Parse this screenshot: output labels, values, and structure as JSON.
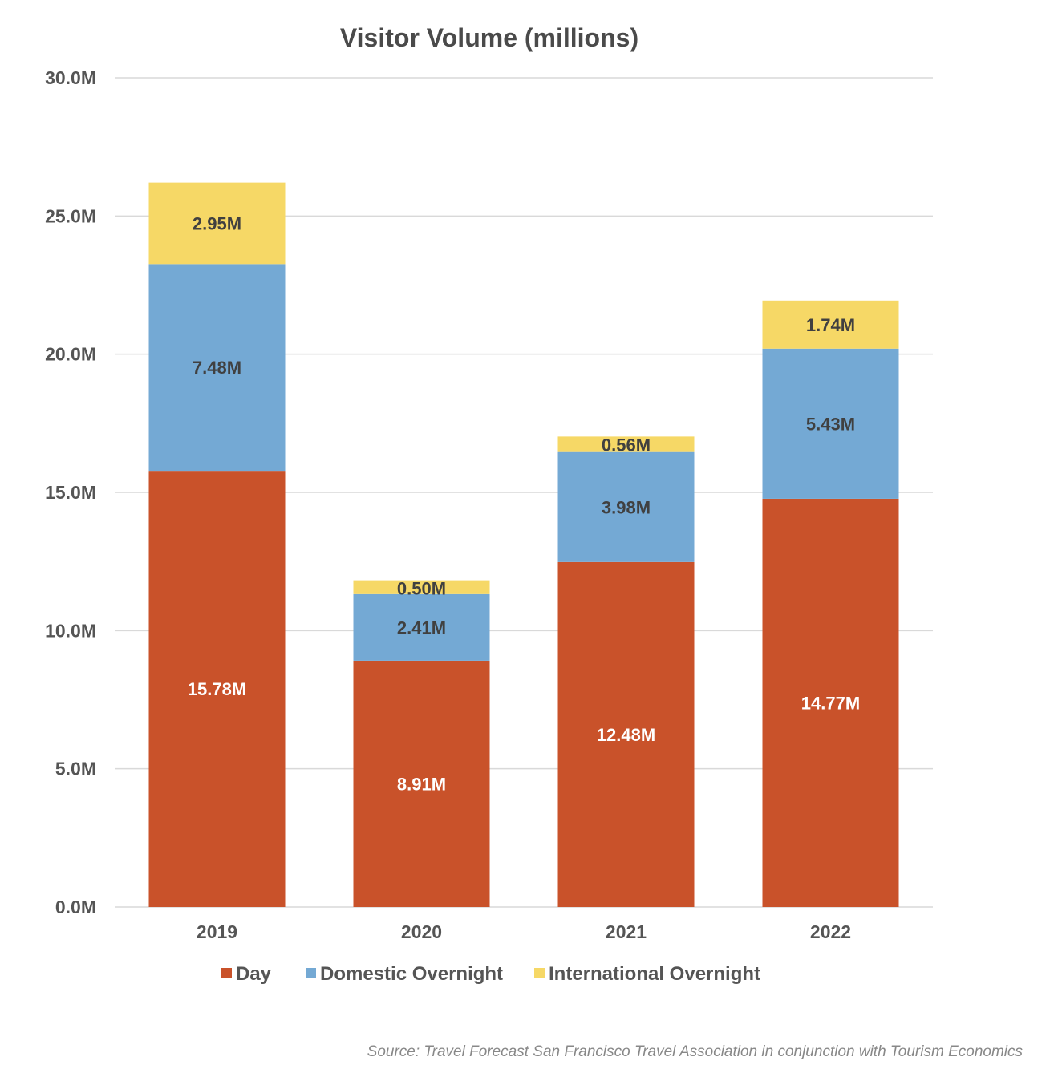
{
  "chart_data": {
    "type": "bar",
    "stacked": true,
    "title": "Visitor Volume (millions)",
    "xlabel": "",
    "ylabel": "",
    "categories": [
      "2019",
      "2020",
      "2021",
      "2022"
    ],
    "ylim": [
      0,
      30
    ],
    "yticks": [
      0,
      5,
      10,
      15,
      20,
      25,
      30
    ],
    "ytick_labels": [
      "0.0M",
      "5.0M",
      "10.0M",
      "15.0M",
      "20.0M",
      "25.0M",
      "30.0M"
    ],
    "grid": true,
    "legend_position": "bottom",
    "series": [
      {
        "name": "Day",
        "color": "#c9522a",
        "label_color": "#ffffff",
        "values": [
          15.78,
          8.91,
          12.48,
          14.77
        ],
        "labels": [
          "15.78M",
          "8.91M",
          "12.48M",
          "14.77M"
        ]
      },
      {
        "name": "Domestic Overnight",
        "color": "#74a9d4",
        "label_color": "#404040",
        "values": [
          7.48,
          2.41,
          3.98,
          5.43
        ],
        "labels": [
          "7.48M",
          "2.41M",
          "3.98M",
          "5.43M"
        ]
      },
      {
        "name": "International Overnight",
        "color": "#f6d866",
        "label_color": "#404040",
        "values": [
          2.95,
          0.5,
          0.56,
          1.74
        ],
        "labels": [
          "2.95M",
          "0.50M",
          "0.56M",
          "1.74M"
        ]
      }
    ]
  },
  "source": "Source: Travel Forecast San Francisco Travel Association in conjunction with Tourism Economics"
}
